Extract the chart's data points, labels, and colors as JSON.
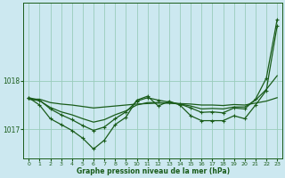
{
  "background_color": "#cce8f0",
  "plot_bg_color": "#cce8f0",
  "grid_color": "#99ccbb",
  "line_color": "#1a5c1a",
  "xlabel": "Graphe pression niveau de la mer (hPa)",
  "ylim": [
    1016.4,
    1019.6
  ],
  "xlim": [
    -0.5,
    23.5
  ],
  "yticks": [
    1017,
    1018
  ],
  "xticks": [
    0,
    1,
    2,
    3,
    4,
    5,
    6,
    7,
    8,
    9,
    10,
    11,
    12,
    13,
    14,
    15,
    16,
    17,
    18,
    19,
    20,
    21,
    22,
    23
  ],
  "series_flat": [
    1017.62,
    1017.62,
    1017.55,
    1017.52,
    1017.5,
    1017.47,
    1017.44,
    1017.46,
    1017.48,
    1017.5,
    1017.52,
    1017.53,
    1017.54,
    1017.54,
    1017.53,
    1017.52,
    1017.5,
    1017.5,
    1017.49,
    1017.51,
    1017.5,
    1017.54,
    1017.58,
    1017.65
  ],
  "series_trend": [
    1017.62,
    1017.59,
    1017.45,
    1017.36,
    1017.3,
    1017.22,
    1017.15,
    1017.2,
    1017.3,
    1017.38,
    1017.5,
    1017.55,
    1017.55,
    1017.54,
    1017.52,
    1017.48,
    1017.42,
    1017.43,
    1017.42,
    1017.46,
    1017.46,
    1017.6,
    1017.82,
    1018.1
  ],
  "series_high": [
    1017.65,
    1017.6,
    1017.42,
    1017.3,
    1017.2,
    1017.08,
    1016.98,
    1017.05,
    1017.22,
    1017.36,
    1017.58,
    1017.65,
    1017.6,
    1017.56,
    1017.52,
    1017.44,
    1017.35,
    1017.36,
    1017.34,
    1017.44,
    1017.42,
    1017.62,
    1018.05,
    1019.25
  ],
  "series_zigzag": [
    1017.65,
    1017.5,
    1017.22,
    1017.1,
    1016.98,
    1016.82,
    1016.6,
    1016.78,
    1017.1,
    1017.25,
    1017.6,
    1017.68,
    1017.48,
    1017.58,
    1017.5,
    1017.28,
    1017.18,
    1017.18,
    1017.18,
    1017.28,
    1017.22,
    1017.5,
    1017.8,
    1019.12
  ]
}
